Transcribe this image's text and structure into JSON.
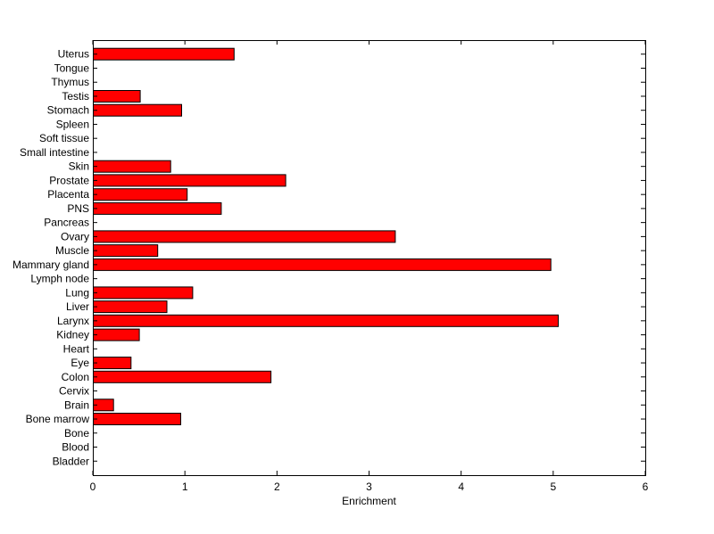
{
  "chart_data": {
    "type": "bar",
    "orientation": "horizontal",
    "title": "",
    "xlabel": "Enrichment",
    "ylabel": "",
    "xlim": [
      0,
      6
    ],
    "xticks": [
      "0",
      "1",
      "2",
      "3",
      "4",
      "5",
      "6"
    ],
    "grid": false,
    "legend": "none",
    "bar_color": "#ff0000",
    "bar_edge_color": "#000000",
    "categories": [
      "Bladder",
      "Blood",
      "Bone",
      "Bone marrow",
      "Brain",
      "Cervix",
      "Colon",
      "Eye",
      "Heart",
      "Kidney",
      "Larynx",
      "Liver",
      "Lung",
      "Lymph node",
      "Mammary gland",
      "Muscle",
      "Ovary",
      "Pancreas",
      "PNS",
      "Placenta",
      "Prostate",
      "Skin",
      "Small intestine",
      "Soft tissue",
      "Spleen",
      "Stomach",
      "Testis",
      "Thymus",
      "Tongue",
      "Uterus"
    ],
    "values": [
      0,
      0,
      0,
      0.95,
      0.22,
      0,
      1.93,
      0.41,
      0,
      0.5,
      5.05,
      0.8,
      1.08,
      0,
      4.97,
      0.7,
      3.28,
      0,
      1.39,
      1.02,
      2.09,
      0.84,
      0,
      0,
      0,
      0.96,
      0.51,
      0,
      0,
      1.53
    ]
  }
}
